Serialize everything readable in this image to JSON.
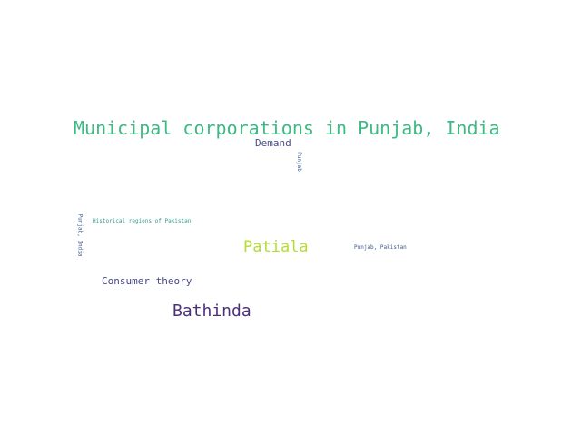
{
  "words": [
    {
      "text": "Municipal corporations in Punjab, India",
      "color": "#3dba84"
    },
    {
      "text": "Demand",
      "color": "#4a4e8f"
    },
    {
      "text": "Punjab",
      "color": "#3b5a8e"
    },
    {
      "text": "Historical regions of Pakistan",
      "color": "#2a9f8a"
    },
    {
      "text": "Punjab, India",
      "color": "#3b5a8e"
    },
    {
      "text": "Patiala",
      "color": "#b5dc36"
    },
    {
      "text": "Punjab, Pakistan",
      "color": "#3b5a8e"
    },
    {
      "text": "Consumer theory",
      "color": "#45478a"
    },
    {
      "text": "Bathinda",
      "color": "#4c2f7a"
    }
  ]
}
